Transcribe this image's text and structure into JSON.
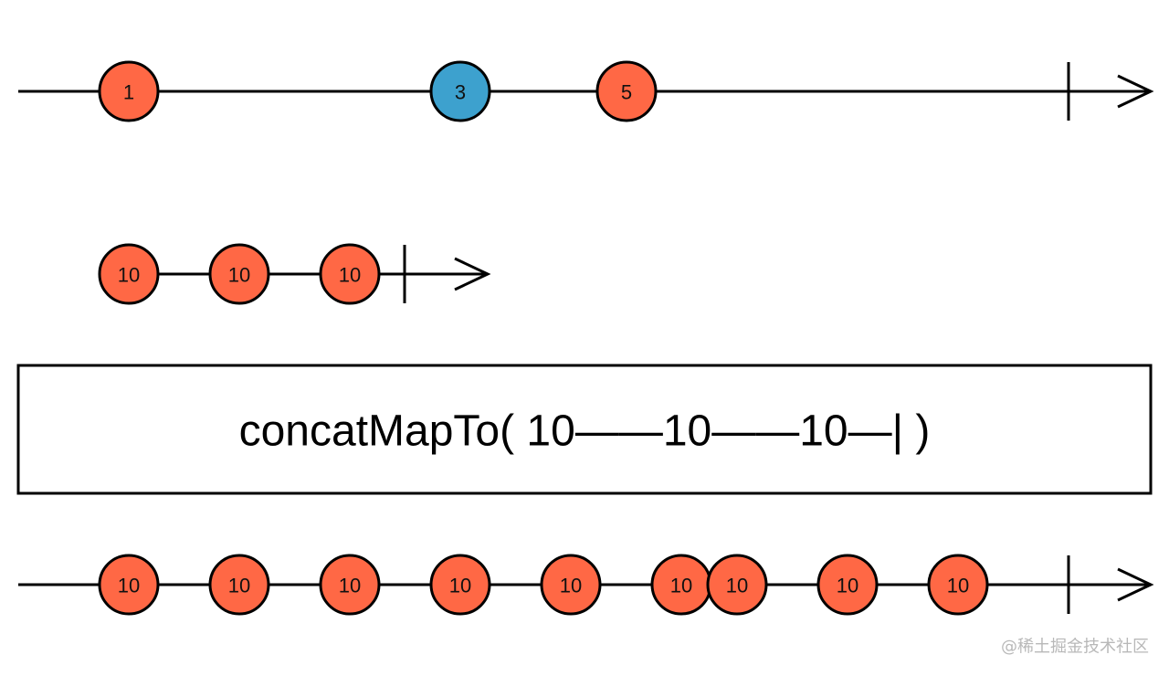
{
  "colors": {
    "marble_default": "#FF6845",
    "marble_highlight": "#3DA1CE",
    "line": "#000000",
    "background": "#FFFFFF",
    "watermark": "#B8B8B8"
  },
  "diagram": {
    "source_timeline": {
      "completed": true,
      "marbles": [
        {
          "label": "1",
          "color": "#FF6845"
        },
        {
          "label": "3",
          "color": "#3DA1CE"
        },
        {
          "label": "5",
          "color": "#FF6845"
        }
      ]
    },
    "inner_timeline": {
      "completed": true,
      "marbles": [
        {
          "label": "10",
          "color": "#FF6845"
        },
        {
          "label": "10",
          "color": "#FF6845"
        },
        {
          "label": "10",
          "color": "#FF6845"
        }
      ]
    },
    "operator": {
      "label": "concatMapTo( 10——10——10—| )"
    },
    "output_timeline": {
      "completed": true,
      "marbles": [
        {
          "label": "10",
          "color": "#FF6845"
        },
        {
          "label": "10",
          "color": "#FF6845"
        },
        {
          "label": "10",
          "color": "#FF6845"
        },
        {
          "label": "10",
          "color": "#FF6845"
        },
        {
          "label": "10",
          "color": "#FF6845"
        },
        {
          "label": "10",
          "color": "#FF6845"
        },
        {
          "label": "10",
          "color": "#FF6845"
        },
        {
          "label": "10",
          "color": "#FF6845"
        },
        {
          "label": "10",
          "color": "#FF6845"
        }
      ]
    }
  },
  "watermark": {
    "text": "@稀土掘金技术社区"
  }
}
